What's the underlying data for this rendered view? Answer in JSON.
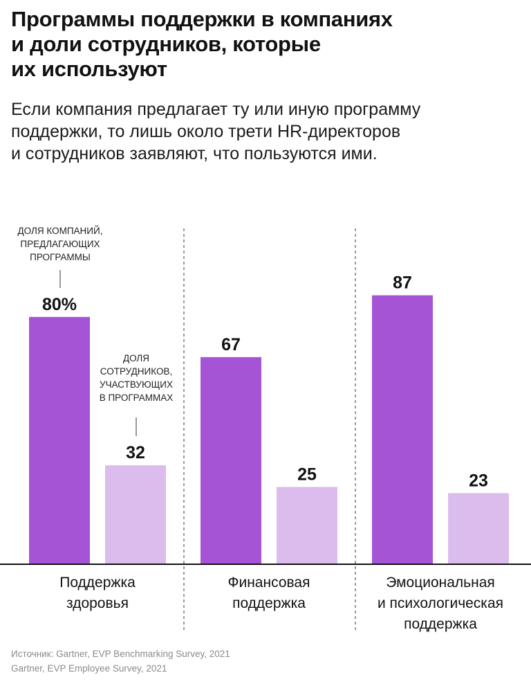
{
  "title_lines": [
    "Программы поддержки в компаниях",
    "и доли сотрудников, которые",
    "их используют"
  ],
  "subtitle_lines": [
    "Если компания предлагает ту или иную программу",
    "поддержки, то лишь около трети HR-директоров",
    "и сотрудников заявляют, что пользуются ими."
  ],
  "source_lines": [
    "Источник: Gartner, EVP Benchmarking Survey, 2021",
    "Gartner, EVP Employee Survey, 2021"
  ],
  "colors": {
    "offered": "#a454d4",
    "used": "#dbbcec"
  },
  "chart_data": {
    "type": "bar",
    "categories": [
      [
        "Поддержка",
        "здоровья"
      ],
      [
        "Финансовая",
        "поддержка"
      ],
      [
        "Эмоциональная",
        "и психологическая",
        "поддержка"
      ]
    ],
    "series": [
      {
        "name": [
          "ДОЛЯ КОМПАНИЙ,",
          "ПРЕДЛАГАЮЩИХ",
          "ПРОГРАММЫ"
        ],
        "values": [
          80,
          67,
          87
        ]
      },
      {
        "name": [
          "ДОЛЯ",
          "СОТРУДНИКОВ,",
          "УЧАСТВУЮЩИХ",
          "В ПРОГРАММАХ"
        ],
        "values": [
          32,
          25,
          23
        ]
      }
    ],
    "value_labels": [
      [
        "80%",
        "67",
        "87"
      ],
      [
        "32",
        "25",
        "23"
      ]
    ],
    "ylim": [
      0,
      100
    ],
    "grid": false,
    "legend": "inline annotations above first group"
  }
}
